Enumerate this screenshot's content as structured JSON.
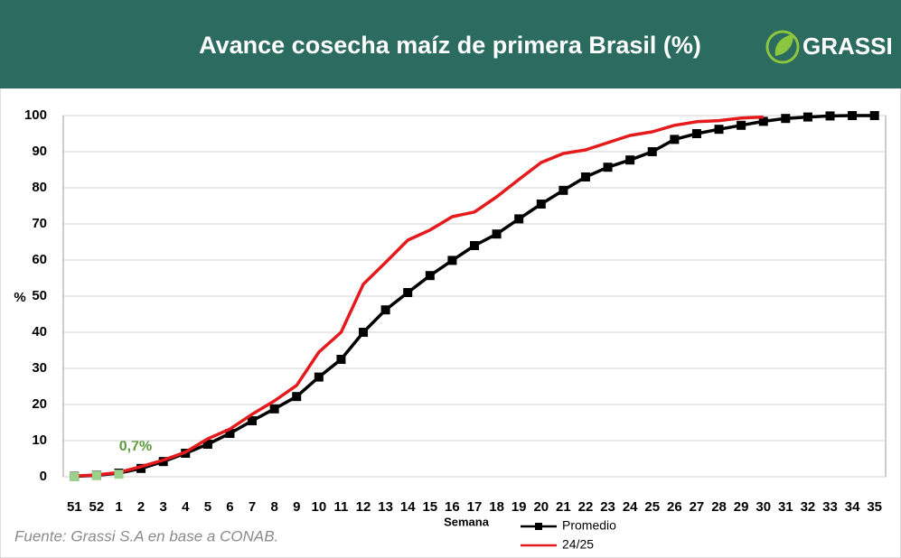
{
  "header": {
    "logo": "GRASSI"
  },
  "chart_data": {
    "type": "line",
    "title": "Avance cosecha maíz de primera Brasil (%)",
    "y_label": "%",
    "x_label": "Semana",
    "source": "Fuente: Grassi S.A en base a CONAB.",
    "annotation": "0,7%",
    "categories": [
      "51",
      "52",
      "1",
      "2",
      "3",
      "4",
      "5",
      "6",
      "7",
      "8",
      "9",
      "10",
      "11",
      "12",
      "13",
      "14",
      "15",
      "16",
      "17",
      "18",
      "19",
      "20",
      "21",
      "22",
      "23",
      "24",
      "25",
      "26",
      "27",
      "28",
      "29",
      "30",
      "31",
      "32",
      "33",
      "34",
      "35"
    ],
    "series": [
      {
        "name": "Promedio",
        "color": "#000000",
        "marker": "square",
        "values": [
          0.1,
          0.4,
          1.0,
          2.3,
          4.2,
          6.5,
          9,
          12,
          15.5,
          18.8,
          22.2,
          27.6,
          32.5,
          40,
          46.2,
          51,
          55.7,
          59.9,
          64,
          67.2,
          71.4,
          75.5,
          79.3,
          83,
          85.7,
          87.7,
          90,
          93.4,
          95,
          96.2,
          97.3,
          98.4,
          99.2,
          99.6,
          99.9,
          100,
          100
        ]
      },
      {
        "name": "24/25",
        "color": "#e41a1c",
        "values": [
          0.2,
          0.5,
          1.2,
          2.8,
          4.6,
          6.8,
          10.5,
          13.2,
          17.3,
          21,
          25.3,
          34.5,
          40,
          53.3,
          59.3,
          65.5,
          68.3,
          72,
          73.3,
          77.5,
          82.3,
          87,
          89.5,
          90.5,
          92.5,
          94.5,
          95.5,
          97.3,
          98.3,
          98.6,
          99.3,
          99.6,
          null,
          null,
          null,
          null,
          null
        ]
      },
      {
        "color": "#9bd18b",
        "marker": "square",
        "line": false,
        "values": [
          0,
          0.3,
          0.7,
          null,
          null,
          null,
          null,
          null,
          null,
          null,
          null,
          null,
          null,
          null,
          null,
          null,
          null,
          null,
          null,
          null,
          null,
          null,
          null,
          null,
          null,
          null,
          null,
          null,
          null,
          null,
          null,
          null,
          null,
          null,
          null,
          null,
          null
        ]
      }
    ],
    "ylim": [
      0,
      100
    ],
    "yticks": [
      0,
      10,
      20,
      30,
      40,
      50,
      60,
      70,
      80,
      90,
      100
    ],
    "grid": true
  }
}
